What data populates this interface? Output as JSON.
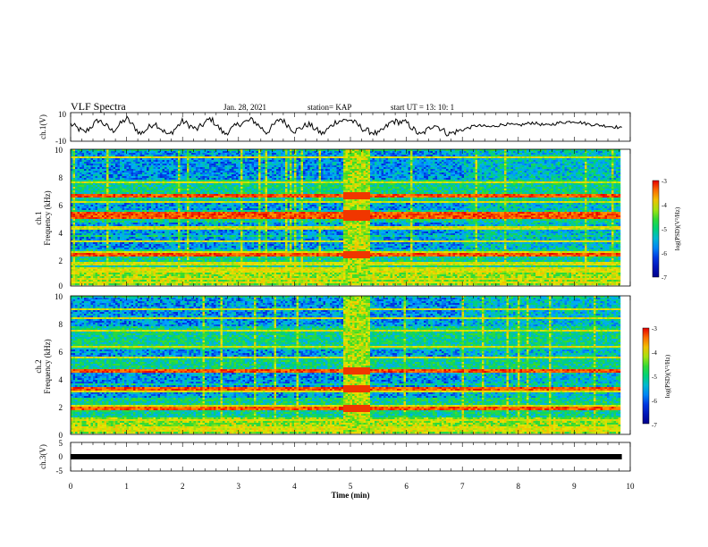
{
  "header": {
    "title": "VLF Spectra",
    "date": "Jan. 28, 2021",
    "station": "station= KAP",
    "start": "start  UT  =   13: 10: 1"
  },
  "chart_data": [
    {
      "type": "line",
      "panel": "ch1-waveform",
      "ylabel": "ch.1(V)",
      "ylim": [
        -10,
        10
      ],
      "yticks": [
        "10",
        "-10"
      ],
      "xlim": [
        0,
        10
      ],
      "series": [
        {
          "x": [
            0,
            0.25,
            0.5,
            0.75,
            1.0,
            1.25,
            1.5,
            1.75,
            2.0,
            2.25,
            2.5,
            2.75,
            3.0,
            3.25,
            3.5,
            3.75,
            4.0,
            4.25,
            4.5,
            4.75,
            5.0,
            5.25,
            5.5,
            5.75,
            6.0,
            6.25,
            6.5,
            6.75,
            7.0,
            7.25,
            7.5,
            7.75,
            8.0,
            8.25,
            8.5,
            8.75,
            9.0,
            9.25,
            9.5,
            9.75,
            9.85
          ],
          "y": [
            2,
            -4,
            5,
            -3,
            6,
            -5,
            3,
            -6,
            4,
            -2,
            6,
            -5,
            2,
            5,
            -4,
            6,
            -3,
            2,
            -5,
            4,
            5,
            -2,
            -5,
            4,
            3,
            -6,
            2,
            -5,
            -2,
            1,
            0,
            2,
            1,
            3,
            1,
            3,
            4,
            2,
            1,
            0,
            -1
          ]
        }
      ]
    },
    {
      "type": "heatmap",
      "panel": "ch1-spectrogram",
      "ylabel": "ch.1\nFrequency (kHz)",
      "yticks": [
        "0",
        "2",
        "4",
        "6",
        "8",
        "10"
      ],
      "ylim": [
        0,
        10
      ],
      "xlim": [
        0,
        10
      ],
      "colorbar": {
        "label": "log(PSD)(V²/Hz)",
        "ticks": [
          "-3",
          "-4",
          "-5",
          "-6",
          "-7"
        ],
        "range": [
          -7,
          -3
        ]
      },
      "bands_khz": [
        0.2,
        0.5,
        1.0,
        1.2,
        1.6,
        2.2,
        2.4,
        3.2,
        4.2,
        5.0,
        5.3,
        6.1,
        6.6,
        7.6,
        9.4
      ],
      "strong_bands_khz": [
        2.2,
        5.0,
        5.3,
        6.6
      ],
      "broadband_event_min": [
        4.87,
        5.35
      ]
    },
    {
      "type": "heatmap",
      "panel": "ch2-spectrogram",
      "ylabel": "ch.2\nFrequency (kHz)",
      "yticks": [
        "0",
        "2",
        "4",
        "6",
        "8",
        "10"
      ],
      "ylim": [
        0,
        10
      ],
      "xlim": [
        0,
        10
      ],
      "colorbar": {
        "label": "log(PSD)(V²/Hz)",
        "ticks": [
          "-3",
          "-4",
          "-5",
          "-6",
          "-7"
        ],
        "range": [
          -7,
          -3
        ]
      },
      "bands_khz": [
        0.2,
        0.4,
        1.0,
        1.8,
        2.0,
        3.1,
        3.3,
        4.6,
        5.5,
        6.3,
        7.5,
        8.4,
        9.0
      ],
      "strong_bands_khz": [
        1.8,
        3.3,
        4.6
      ],
      "broadband_event_min": [
        4.87,
        5.35
      ]
    },
    {
      "type": "line",
      "panel": "ch3-waveform",
      "ylabel": "ch.3(V)",
      "ylim": [
        -5,
        5
      ],
      "yticks": [
        "5",
        "0",
        "-5"
      ],
      "xlim": [
        0,
        10
      ],
      "series": [
        {
          "x": [
            0,
            9.85
          ],
          "y": [
            0,
            0
          ]
        }
      ]
    }
  ],
  "xaxis": {
    "label": "Time (min)",
    "ticks": [
      "0",
      "1",
      "2",
      "3",
      "4",
      "5",
      "6",
      "7",
      "8",
      "9",
      "10"
    ]
  },
  "colors": {
    "low": "#00008b",
    "mid": "#00d030",
    "high": "#ff0000"
  }
}
